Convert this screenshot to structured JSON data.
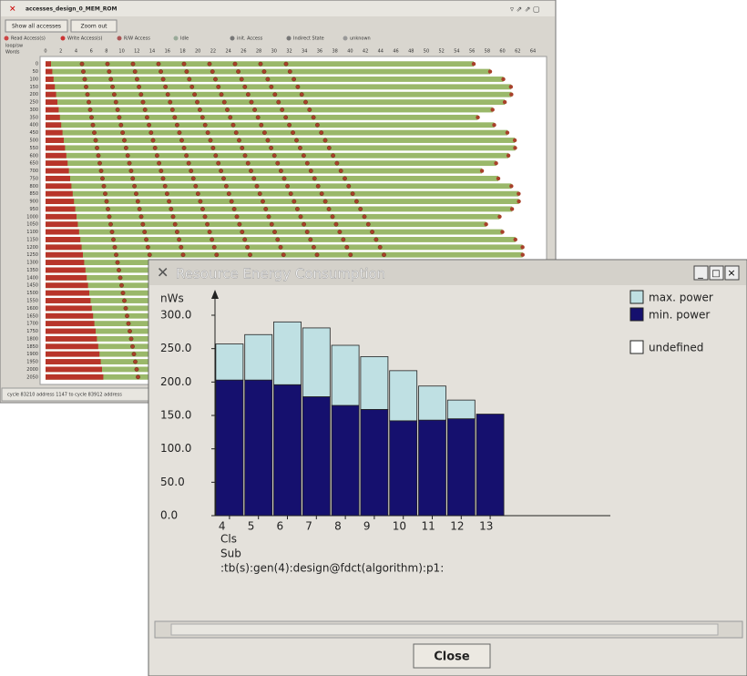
{
  "background_window": {
    "title": "accesses_design_0_MEM_ROM",
    "buttons": [
      "Show all accesses",
      "Zoom out"
    ],
    "legend": [
      "Read Access(s)",
      "Write Access(s)",
      "R/W Access",
      "Idle",
      "init. Access",
      "Indirect State",
      "unknown"
    ],
    "corner_labels": [
      "loop/sw",
      "Words"
    ],
    "x_labels": [
      0,
      2,
      4,
      6,
      8,
      10,
      12,
      14,
      16,
      18,
      20,
      22,
      24,
      26,
      28,
      30,
      32,
      34,
      36,
      38,
      40,
      42,
      44,
      46,
      48,
      50,
      52,
      54,
      56,
      58,
      60,
      62,
      64
    ],
    "row_labels": [
      0,
      50,
      100,
      150,
      200,
      250,
      300,
      350,
      400,
      450,
      500,
      550,
      600,
      650,
      700,
      750,
      800,
      850,
      900,
      950,
      1000,
      1050,
      1100,
      1150,
      1200,
      1250,
      1300,
      1350,
      1400,
      1450,
      1500,
      1550,
      1600,
      1650,
      1700,
      1750,
      1800,
      1850,
      1900,
      1950,
      2000,
      2050
    ],
    "status": "cycle 83210 address 1147  to cycle 83912 address"
  },
  "energy_window": {
    "title": "Resource Energy Consumption",
    "close_button": "Close"
  },
  "chart_data": {
    "type": "bar",
    "stacked": true,
    "y_label": "nWs",
    "categories": [
      "4",
      "5",
      "6",
      "7",
      "8",
      "9",
      "10",
      "11",
      "12",
      "13"
    ],
    "series": [
      {
        "name": "min. power",
        "color": "#15106e",
        "values": [
          203,
          203,
          196,
          178,
          165,
          159,
          142,
          143,
          145,
          152
        ]
      },
      {
        "name": "max. power",
        "color": "#bfe0e3",
        "values": [
          54,
          68,
          94,
          103,
          90,
          79,
          75,
          51,
          28,
          0
        ]
      }
    ],
    "extra_legend": {
      "name": "undefined",
      "color": "#ffffff"
    },
    "annotations": [
      "Cls",
      "Sub",
      ":tb(s):gen(4):design@fdct(algorithm):p1:"
    ],
    "ylim": [
      0,
      330
    ],
    "yticks": [
      {
        "value": 0,
        "label": "0.0"
      },
      {
        "value": 50,
        "label": "50.0"
      },
      {
        "value": 100,
        "label": "100.0"
      },
      {
        "value": 150,
        "label": "150.0"
      },
      {
        "value": 200,
        "label": "200.0"
      },
      {
        "value": 250,
        "label": "250.0"
      },
      {
        "value": 300,
        "label": "300.0"
      }
    ]
  }
}
